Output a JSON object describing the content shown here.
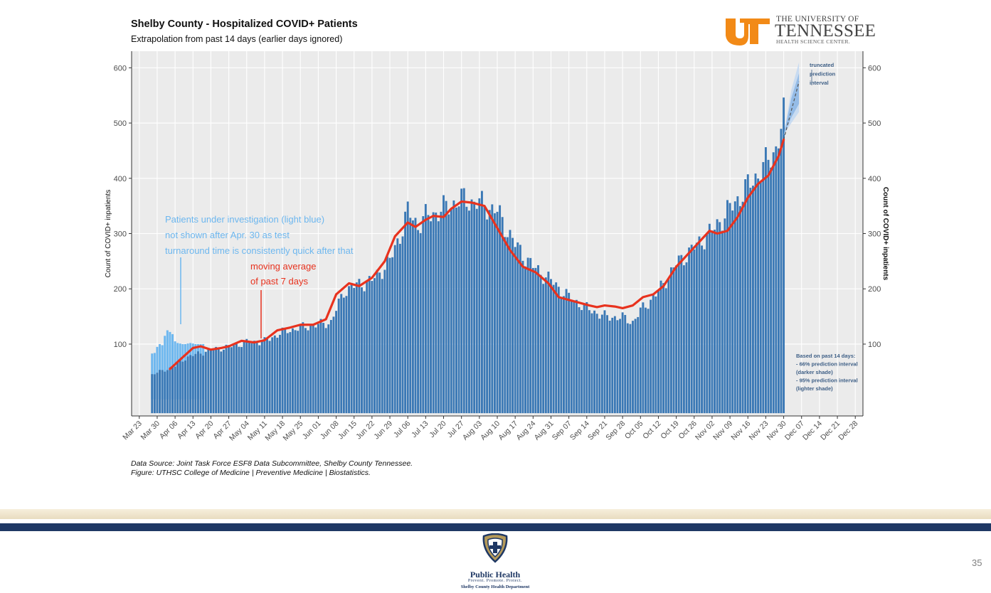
{
  "slide": {
    "page_number": "35"
  },
  "logo_ut": {
    "line1": "THE UNIVERSITY OF",
    "line2": "TENNESSEE",
    "line3": "HEALTH SCIENCE CENTER.",
    "brand_color": "#f28a17"
  },
  "logo_health": {
    "name": "Public Health",
    "tagline": "Prevent. Promote. Protect.",
    "department": "Shelby County Health Department",
    "brand_color": "#1f3864",
    "accent_color": "#b59a5a"
  },
  "source": {
    "line1": "Data Source: Joint Task Force ESF8 Data Subcommittee, Shelby County Tennessee.",
    "line2": "Figure: UTHSC College of Medicine | Preventive Medicine | Biostatistics."
  },
  "chart_data": {
    "type": "bar",
    "title": "Shelby County - Hospitalized COVID+ Patients",
    "subtitle": "Extrapolation from past 14 days (earlier days ignored)",
    "ylabel": "Count of COVID+ inpatients",
    "ylabel_right": "Count of COVID+ inpatients",
    "xlabel": "",
    "ylim": [
      -30,
      630
    ],
    "yticks": [
      100,
      200,
      300,
      400,
      500,
      600
    ],
    "x_ticks": [
      "Mar 23",
      "Mar 30",
      "Apr 06",
      "Apr 13",
      "Apr 20",
      "Apr 27",
      "May 04",
      "May 11",
      "May 18",
      "May 25",
      "Jun 01",
      "Jun 08",
      "Jun 15",
      "Jun 22",
      "Jun 29",
      "Jul 06",
      "Jul 13",
      "Jul 20",
      "Jul 27",
      "Aug 03",
      "Aug 10",
      "Aug 17",
      "Aug 24",
      "Aug 31",
      "Sep 07",
      "Sep 14",
      "Sep 21",
      "Sep 28",
      "Oct 05",
      "Oct 12",
      "Oct 19",
      "Oct 26",
      "Nov 02",
      "Nov 09",
      "Nov 16",
      "Nov 23",
      "Nov 30",
      "Dec 07",
      "Dec 14",
      "Dec 21",
      "Dec 28"
    ],
    "x_ticks_day": [
      0,
      7,
      14,
      21,
      28,
      35,
      42,
      49,
      56,
      63,
      70,
      77,
      84,
      91,
      98,
      105,
      112,
      119,
      126,
      133,
      140,
      147,
      154,
      161,
      168,
      175,
      182,
      189,
      196,
      203,
      210,
      217,
      224,
      231,
      238,
      245,
      252,
      259,
      266,
      273,
      280
    ],
    "x_range_days": [
      -3,
      283
    ],
    "series": [
      {
        "name": "Confirmed COVID+ inpatients",
        "color": "#3a78b5",
        "start_day": 5,
        "anchors_day": [
          5,
          14,
          18,
          28,
          35,
          42,
          49,
          56,
          63,
          70,
          75,
          80,
          84,
          91,
          98,
          103,
          105,
          109,
          112,
          117,
          126,
          133,
          140,
          147,
          154,
          161,
          168,
          175,
          182,
          189,
          193,
          196,
          203,
          210,
          217,
          224,
          231,
          238,
          245,
          249,
          252
        ],
        "anchors_value": [
          45,
          60,
          75,
          90,
          95,
          103,
          105,
          122,
          130,
          135,
          140,
          195,
          205,
          215,
          250,
          310,
          340,
          315,
          330,
          340,
          362,
          355,
          340,
          280,
          240,
          215,
          185,
          165,
          150,
          148,
          140,
          160,
          195,
          245,
          275,
          305,
          345,
          385,
          425,
          455,
          510
        ]
      },
      {
        "name": "Patients under investigation (PUI)",
        "color": "#6db7ef",
        "days": [
          5,
          6,
          7,
          8,
          9,
          10,
          11,
          12,
          13,
          14,
          15,
          16,
          17,
          18,
          19,
          20,
          21,
          22,
          23,
          24,
          25
        ],
        "values": [
          83,
          84,
          95,
          100,
          98,
          115,
          125,
          122,
          118,
          105,
          102,
          101,
          100,
          100,
          101,
          102,
          101,
          100,
          100,
          100,
          100
        ]
      },
      {
        "name": "moving average of past 7 days",
        "color": "#e8321e",
        "days": [
          12,
          16,
          21,
          24,
          28,
          32,
          35,
          40,
          45,
          49,
          54,
          59,
          63,
          68,
          73,
          77,
          82,
          86,
          91,
          96,
          100,
          105,
          108,
          112,
          115,
          119,
          122,
          126,
          130,
          135,
          140,
          145,
          150,
          155,
          160,
          164,
          168,
          172,
          176,
          179,
          182,
          186,
          189,
          193,
          197,
          201,
          205,
          210,
          214,
          218,
          223,
          226,
          230,
          234,
          238,
          242,
          246,
          250,
          252
        ],
        "values": [
          55,
          72,
          93,
          96,
          90,
          93,
          96,
          106,
          103,
          107,
          125,
          130,
          135,
          135,
          145,
          190,
          210,
          205,
          220,
          250,
          295,
          320,
          312,
          325,
          332,
          330,
          345,
          358,
          356,
          350,
          310,
          270,
          240,
          230,
          210,
          185,
          180,
          175,
          170,
          167,
          170,
          168,
          165,
          170,
          185,
          190,
          205,
          240,
          260,
          280,
          305,
          300,
          305,
          330,
          365,
          390,
          405,
          440,
          470
        ]
      }
    ],
    "forecast": {
      "from_day": 252,
      "to_day": 258,
      "from_value": 470,
      "to_value": 575,
      "pi95": [
        [
          252,
          478,
          478
        ],
        [
          255,
          500,
          560
        ],
        [
          258,
          520,
          610
        ]
      ],
      "pi66": [
        [
          252,
          478,
          478
        ],
        [
          255,
          510,
          545
        ],
        [
          258,
          535,
          590
        ]
      ],
      "inner_color": "#8fb8e6",
      "outer_color": "#c4d9f2",
      "dash_color": "#555555"
    },
    "annotations": {
      "pui_note": [
        "Patients under investigation (light blue)",
        "not shown after Apr. 30 as test",
        "turnaround time is consistently quick after that"
      ],
      "pui_note_color": "#6db7ef",
      "ma_note": [
        "moving average",
        "of past 7 days"
      ],
      "ma_note_color": "#e8321e",
      "pi_label": [
        "truncated",
        "prediction",
        "interval"
      ],
      "pi_legend": [
        "Based on past 14 days:",
        "- 66% prediction interval",
        "(darker shade)",
        "- 95% prediction interval",
        "(lighter shade)"
      ],
      "pi_color": "#3e5f86"
    }
  }
}
